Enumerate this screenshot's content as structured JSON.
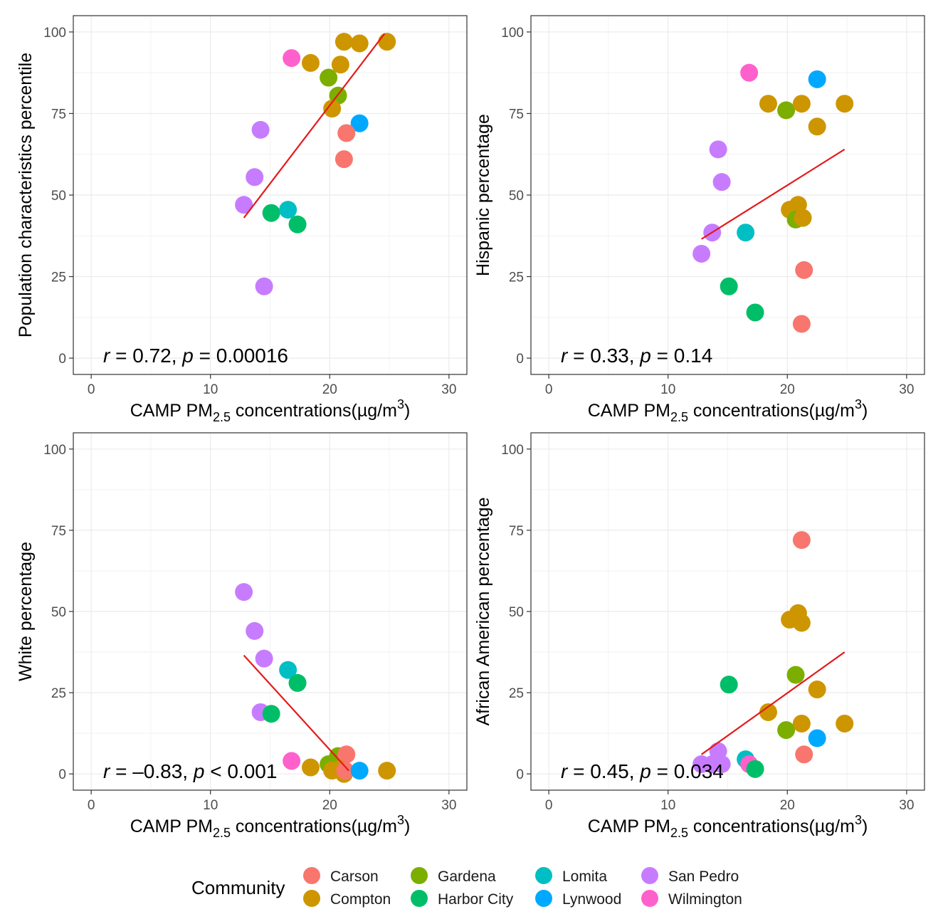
{
  "legend": {
    "title": "Community",
    "entries": [
      {
        "name": "Carson",
        "color": "#F8766D"
      },
      {
        "name": "Compton",
        "color": "#CD9600"
      },
      {
        "name": "Gardena",
        "color": "#7CAE00"
      },
      {
        "name": "Harbor City",
        "color": "#00BE67"
      },
      {
        "name": "Lomita",
        "color": "#00BFC4"
      },
      {
        "name": "Lynwood",
        "color": "#00A9FF"
      },
      {
        "name": "San Pedro",
        "color": "#C77CFF"
      },
      {
        "name": "Wilmington",
        "color": "#FF61CC"
      }
    ]
  },
  "chart_data": [
    {
      "type": "scatter",
      "xlabel": {
        "main": "CAMP PM",
        "sub": "2.5",
        "rest": " concentrations(µg/m",
        "sup": "3",
        "close": ")"
      },
      "ylabel": "Population characteristics percentile",
      "xlim": [
        -1.5,
        31.5
      ],
      "ylim": [
        -5,
        105
      ],
      "xticks": [
        0,
        10,
        20,
        30
      ],
      "yticks": [
        0,
        25,
        50,
        75,
        100
      ],
      "annotation": {
        "r_symbol": "r",
        "r_text": " = 0.72, ",
        "p_symbol": "p",
        "p_text": " = 0.00016"
      },
      "fit_line": {
        "x": [
          12.8,
          24.6
        ],
        "y": [
          43,
          99.5
        ]
      },
      "points": [
        {
          "community": "Wilmington",
          "x": 16.8,
          "y": 92
        },
        {
          "community": "Compton",
          "x": 18.4,
          "y": 90.5
        },
        {
          "community": "Compton",
          "x": 21.2,
          "y": 97
        },
        {
          "community": "Compton",
          "x": 22.5,
          "y": 96.5
        },
        {
          "community": "Compton",
          "x": 24.8,
          "y": 97
        },
        {
          "community": "Compton",
          "x": 20.9,
          "y": 90
        },
        {
          "community": "Gardena",
          "x": 19.9,
          "y": 86
        },
        {
          "community": "Gardena",
          "x": 20.7,
          "y": 80.5
        },
        {
          "community": "Compton",
          "x": 20.2,
          "y": 76.5
        },
        {
          "community": "Lynwood",
          "x": 22.5,
          "y": 72
        },
        {
          "community": "Carson",
          "x": 21.4,
          "y": 69
        },
        {
          "community": "Carson",
          "x": 21.2,
          "y": 61
        },
        {
          "community": "San Pedro",
          "x": 14.2,
          "y": 70
        },
        {
          "community": "San Pedro",
          "x": 13.7,
          "y": 55.5
        },
        {
          "community": "San Pedro",
          "x": 12.8,
          "y": 47
        },
        {
          "community": "Harbor City",
          "x": 15.1,
          "y": 44.5
        },
        {
          "community": "Lomita",
          "x": 16.5,
          "y": 45.5
        },
        {
          "community": "Harbor City",
          "x": 17.3,
          "y": 41
        },
        {
          "community": "San Pedro",
          "x": 14.5,
          "y": 22
        }
      ]
    },
    {
      "type": "scatter",
      "xlabel": {
        "main": "CAMP PM",
        "sub": "2.5",
        "rest": " concentrations(µg/m",
        "sup": "3",
        "close": ")"
      },
      "ylabel": "Hispanic percentage",
      "xlim": [
        -1.5,
        31.5
      ],
      "ylim": [
        -5,
        105
      ],
      "xticks": [
        0,
        10,
        20,
        30
      ],
      "yticks": [
        0,
        25,
        50,
        75,
        100
      ],
      "annotation": {
        "r_symbol": "r",
        "r_text": " = 0.33, ",
        "p_symbol": "p",
        "p_text": " = 0.14"
      },
      "fit_line": {
        "x": [
          12.8,
          24.8
        ],
        "y": [
          36.5,
          64
        ]
      },
      "points": [
        {
          "community": "Wilmington",
          "x": 16.8,
          "y": 87.5
        },
        {
          "community": "Lynwood",
          "x": 22.5,
          "y": 85.5
        },
        {
          "community": "Compton",
          "x": 18.4,
          "y": 78
        },
        {
          "community": "Gardena",
          "x": 19.9,
          "y": 76
        },
        {
          "community": "Compton",
          "x": 21.2,
          "y": 78
        },
        {
          "community": "Compton",
          "x": 24.8,
          "y": 78
        },
        {
          "community": "Compton",
          "x": 22.5,
          "y": 71
        },
        {
          "community": "San Pedro",
          "x": 14.2,
          "y": 64
        },
        {
          "community": "San Pedro",
          "x": 14.5,
          "y": 54
        },
        {
          "community": "Compton",
          "x": 20.2,
          "y": 45.5
        },
        {
          "community": "Compton",
          "x": 20.9,
          "y": 47
        },
        {
          "community": "Gardena",
          "x": 20.7,
          "y": 42.5
        },
        {
          "community": "Compton",
          "x": 21.3,
          "y": 43
        },
        {
          "community": "San Pedro",
          "x": 13.7,
          "y": 38.5
        },
        {
          "community": "Lomita",
          "x": 16.5,
          "y": 38.5
        },
        {
          "community": "San Pedro",
          "x": 12.8,
          "y": 32
        },
        {
          "community": "Carson",
          "x": 21.4,
          "y": 27
        },
        {
          "community": "Harbor City",
          "x": 15.1,
          "y": 22
        },
        {
          "community": "Harbor City",
          "x": 17.3,
          "y": 14
        },
        {
          "community": "Carson",
          "x": 21.2,
          "y": 10.5
        }
      ]
    },
    {
      "type": "scatter",
      "xlabel": {
        "main": "CAMP PM",
        "sub": "2.5",
        "rest": " concentrations(µg/m",
        "sup": "3",
        "close": ")"
      },
      "ylabel": "White percentage",
      "xlim": [
        -1.5,
        31.5
      ],
      "ylim": [
        -5,
        105
      ],
      "xticks": [
        0,
        10,
        20,
        30
      ],
      "yticks": [
        0,
        25,
        50,
        75,
        100
      ],
      "annotation": {
        "r_symbol": "r",
        "r_text": " = –0.83, ",
        "p_symbol": "p",
        "p_text": " < 0.001"
      },
      "fit_line": {
        "x": [
          12.8,
          21.6
        ],
        "y": [
          36.5,
          1
        ]
      },
      "points": [
        {
          "community": "San Pedro",
          "x": 12.8,
          "y": 56
        },
        {
          "community": "San Pedro",
          "x": 13.7,
          "y": 44
        },
        {
          "community": "San Pedro",
          "x": 14.5,
          "y": 35.5
        },
        {
          "community": "Lomita",
          "x": 16.5,
          "y": 32
        },
        {
          "community": "Harbor City",
          "x": 17.3,
          "y": 28
        },
        {
          "community": "San Pedro",
          "x": 14.2,
          "y": 19
        },
        {
          "community": "Harbor City",
          "x": 15.1,
          "y": 18.5
        },
        {
          "community": "Gardena",
          "x": 20.7,
          "y": 5.5
        },
        {
          "community": "Carson",
          "x": 21.4,
          "y": 6
        },
        {
          "community": "Gardena",
          "x": 19.9,
          "y": 3
        },
        {
          "community": "Wilmington",
          "x": 16.8,
          "y": 4
        },
        {
          "community": "Compton",
          "x": 18.4,
          "y": 2
        },
        {
          "community": "Compton",
          "x": 20.2,
          "y": 1
        },
        {
          "community": "Compton",
          "x": 20.9,
          "y": 1.5
        },
        {
          "community": "Compton",
          "x": 21.2,
          "y": 0
        },
        {
          "community": "Carson",
          "x": 21.3,
          "y": 1
        },
        {
          "community": "Lynwood",
          "x": 22.5,
          "y": 1
        },
        {
          "community": "Compton",
          "x": 24.8,
          "y": 1
        }
      ]
    },
    {
      "type": "scatter",
      "xlabel": {
        "main": "CAMP PM",
        "sub": "2.5",
        "rest": " concentrations(µg/m",
        "sup": "3",
        "close": ")"
      },
      "ylabel": "African American percentage",
      "xlim": [
        -1.5,
        31.5
      ],
      "ylim": [
        -5,
        105
      ],
      "xticks": [
        0,
        10,
        20,
        30
      ],
      "yticks": [
        0,
        25,
        50,
        75,
        100
      ],
      "annotation": {
        "r_symbol": "r",
        "r_text": " = 0.45, ",
        "p_symbol": "p",
        "p_text": " = 0.034"
      },
      "fit_line": {
        "x": [
          12.8,
          24.8
        ],
        "y": [
          6,
          37.5
        ]
      },
      "points": [
        {
          "community": "Carson",
          "x": 21.2,
          "y": 72
        },
        {
          "community": "Compton",
          "x": 20.9,
          "y": 49.5
        },
        {
          "community": "Compton",
          "x": 20.2,
          "y": 47.5
        },
        {
          "community": "Compton",
          "x": 21.2,
          "y": 46.5
        },
        {
          "community": "Gardena",
          "x": 20.7,
          "y": 30.5
        },
        {
          "community": "Harbor City",
          "x": 15.1,
          "y": 27.5
        },
        {
          "community": "Compton",
          "x": 22.5,
          "y": 26
        },
        {
          "community": "Compton",
          "x": 18.4,
          "y": 19
        },
        {
          "community": "Compton",
          "x": 21.2,
          "y": 15.5
        },
        {
          "community": "Compton",
          "x": 24.8,
          "y": 15.5
        },
        {
          "community": "Gardena",
          "x": 19.9,
          "y": 13.5
        },
        {
          "community": "Lynwood",
          "x": 22.5,
          "y": 11
        },
        {
          "community": "Carson",
          "x": 21.4,
          "y": 6
        },
        {
          "community": "San Pedro",
          "x": 14.2,
          "y": 7
        },
        {
          "community": "San Pedro",
          "x": 12.8,
          "y": 3
        },
        {
          "community": "San Pedro",
          "x": 13.7,
          "y": 3
        },
        {
          "community": "San Pedro",
          "x": 14.5,
          "y": 3
        },
        {
          "community": "Lomita",
          "x": 16.5,
          "y": 4.5
        },
        {
          "community": "Wilmington",
          "x": 16.8,
          "y": 3
        },
        {
          "community": "Harbor City",
          "x": 17.3,
          "y": 1.5
        }
      ]
    }
  ]
}
